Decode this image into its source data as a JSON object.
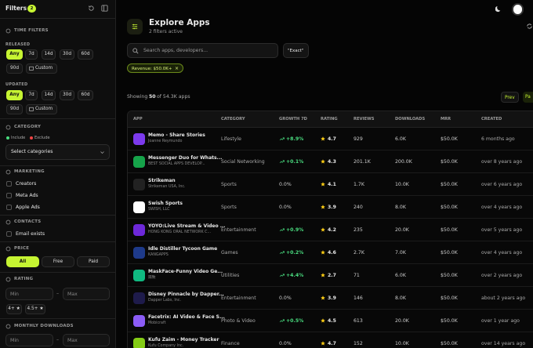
{
  "sidebar": {
    "title": "Filters",
    "badge": "2",
    "time_filters": "TIME FILTERS",
    "released": {
      "label": "RELEASED",
      "options": [
        "Any",
        "7d",
        "14d",
        "30d",
        "60d",
        "90d",
        "Custom"
      ]
    },
    "updated": {
      "label": "UPDATED",
      "options": [
        "Any",
        "7d",
        "14d",
        "30d",
        "60d",
        "90d",
        "Custom"
      ]
    },
    "category": {
      "label": "CATEGORY",
      "include": "Include",
      "exclude": "Exclude",
      "select": "Select categories"
    },
    "marketing": {
      "label": "MARKETING",
      "options": [
        "Creators",
        "Meta Ads",
        "Apple Ads"
      ]
    },
    "contacts": {
      "label": "CONTACTS",
      "options": [
        "Email exists"
      ]
    },
    "price": {
      "label": "PRICE",
      "options": [
        "All",
        "Free",
        "Paid"
      ]
    },
    "rating": {
      "label": "RATING",
      "min": "Min",
      "dash": "–",
      "max": "Max",
      "options": [
        "4+ ★",
        "4.5+ ★"
      ]
    },
    "downloads": {
      "label": "MONTHLY DOWNLOADS",
      "min": "Min",
      "dash": "–",
      "max": "Max"
    }
  },
  "header": {
    "title": "Explore Apps",
    "subtitle": "2 filters active",
    "search": "Search apps, developers...",
    "exact": "\"Exact\"",
    "chip": "Revenue: $50.0K+",
    "chip_close": "×"
  },
  "results": {
    "showing": "Showing",
    "count": "50",
    "of": "of 54.3K apps",
    "prev": "Prev",
    "next": "Pa"
  },
  "table": {
    "columns": [
      "APP",
      "CATEGORY",
      "GROWTH 7D",
      "RATING",
      "REVIEWS",
      "DOWNLOADS",
      "MRR",
      "CREATED"
    ],
    "rows": [
      {
        "name": "Memo - Share Stories",
        "developer": "Joanne Reymundo",
        "category": "Lifestyle",
        "growth": "+8.9%",
        "rating": "4.7",
        "reviews": "929",
        "downloads": "6.0K",
        "mrr": "$50.0K",
        "created": "6 months ago"
      },
      {
        "name": "Messenger Duo for Whats...",
        "developer": "BEST SOCIAL APPS DEVELOP...",
        "category": "Social Networking",
        "growth": "+0.1%",
        "rating": "4.3",
        "reviews": "201.1K",
        "downloads": "200.0K",
        "mrr": "$50.0K",
        "created": "over 8 years ago"
      },
      {
        "name": "Strikeman",
        "developer": "Strikeman USA, Inc.",
        "category": "Sports",
        "growth": "0.0%",
        "rating": "4.1",
        "reviews": "1.7K",
        "downloads": "10.0K",
        "mrr": "$50.0K",
        "created": "over 6 years ago"
      },
      {
        "name": "Swish Sports",
        "developer": "SWISH, LLC",
        "category": "Sports",
        "growth": "0.0%",
        "rating": "3.9",
        "reviews": "240",
        "downloads": "8.0K",
        "mrr": "$50.0K",
        "created": "over 4 years ago"
      },
      {
        "name": "YOYO:Live Stream & Video ...",
        "developer": "HONG KONG ORAL NETWORK C...",
        "category": "Entertainment",
        "growth": "+0.9%",
        "rating": "4.2",
        "reviews": "235",
        "downloads": "20.0K",
        "mrr": "$50.0K",
        "created": "over 5 years ago"
      },
      {
        "name": "Idle Distiller Tycoon Game",
        "developer": "KANGAPPS",
        "category": "Games",
        "growth": "+0.2%",
        "rating": "4.6",
        "reviews": "2.7K",
        "downloads": "7.0K",
        "mrr": "$50.0K",
        "created": "over 4 years ago"
      },
      {
        "name": "MaskFace-Funny Video Ge...",
        "developer": "陽致",
        "category": "Utilities",
        "growth": "+4.4%",
        "rating": "2.7",
        "reviews": "71",
        "downloads": "6.0K",
        "mrr": "$50.0K",
        "created": "over 2 years ago"
      },
      {
        "name": "Disney Pinnacle by Dapper...",
        "developer": "Dapper Labs, Inc.",
        "category": "Entertainment",
        "growth": "0.0%",
        "rating": "3.9",
        "reviews": "146",
        "downloads": "8.0K",
        "mrr": "$50.0K",
        "created": "about 2 years ago"
      },
      {
        "name": "Facetrix: AI Video & Face S...",
        "developer": "Mobicraft",
        "category": "Photo & Video",
        "growth": "+0.5%",
        "rating": "4.5",
        "reviews": "613",
        "downloads": "20.0K",
        "mrr": "$50.0K",
        "created": "over 1 year ago"
      },
      {
        "name": "Kufu Zaim - Money Tracker",
        "developer": "Kufu Company Inc.",
        "category": "Finance",
        "growth": "0.0%",
        "rating": "4.7",
        "reviews": "152",
        "downloads": "10.0K",
        "mrr": "$50.0K",
        "created": "over 14 years ago"
      }
    ]
  }
}
